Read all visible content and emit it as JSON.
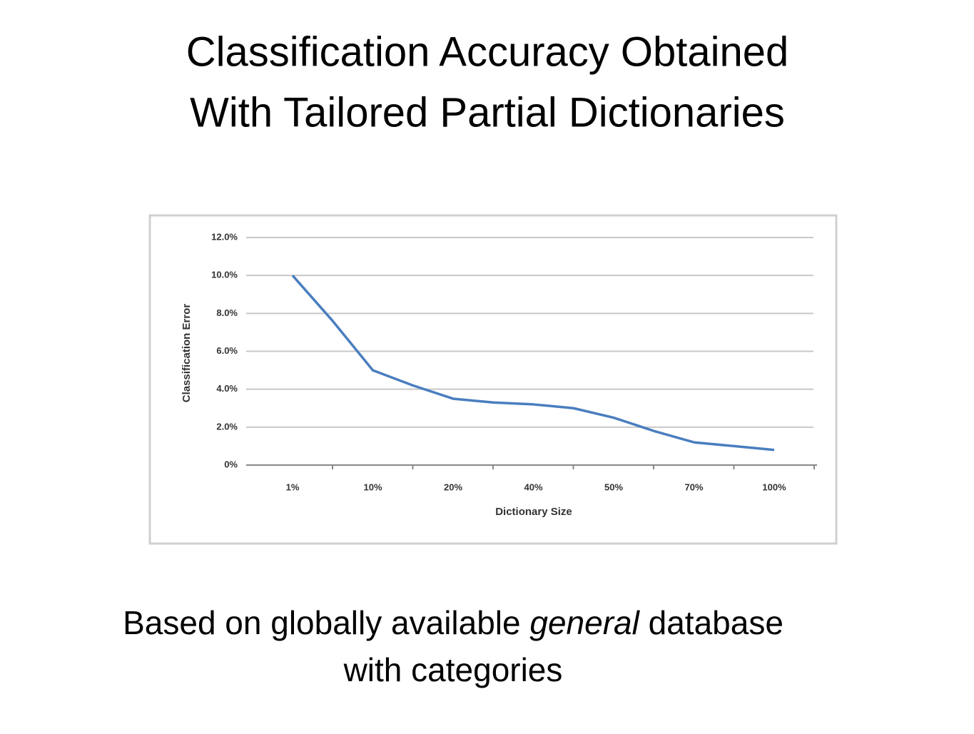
{
  "slide": {
    "title": [
      "Classification Accuracy Obtained",
      "With Tailored Partial Dictionaries"
    ],
    "caption": [
      [
        "Based on globally available ",
        "general",
        " database"
      ],
      [
        "with categories"
      ]
    ]
  },
  "chart_data": {
    "type": "line",
    "x_label": "Dictionary Size",
    "y_label": "Classification Error",
    "categories": [
      "1%",
      null,
      "10%",
      null,
      "20%",
      null,
      "40%",
      null,
      "50%",
      null,
      "70%",
      null,
      "100%"
    ],
    "series": [
      {
        "name": "Classification Error",
        "color": "#4a7ebf",
        "values": [
          10.0,
          7.6,
          5.0,
          4.2,
          3.5,
          3.3,
          3.2,
          3.0,
          2.5,
          1.8,
          1.2,
          1.0,
          0.8
        ]
      }
    ],
    "ylim": [
      0,
      12
    ],
    "yticks": [
      {
        "value": 0,
        "label": "0%"
      },
      {
        "value": 2,
        "label": "2.0%"
      },
      {
        "value": 4,
        "label": "4.0%"
      },
      {
        "value": 6,
        "label": "6.0%"
      },
      {
        "value": 8,
        "label": "8.0%"
      },
      {
        "value": 10,
        "label": "10.0%"
      },
      {
        "value": 12,
        "label": "12.0%"
      }
    ],
    "grid": true
  }
}
